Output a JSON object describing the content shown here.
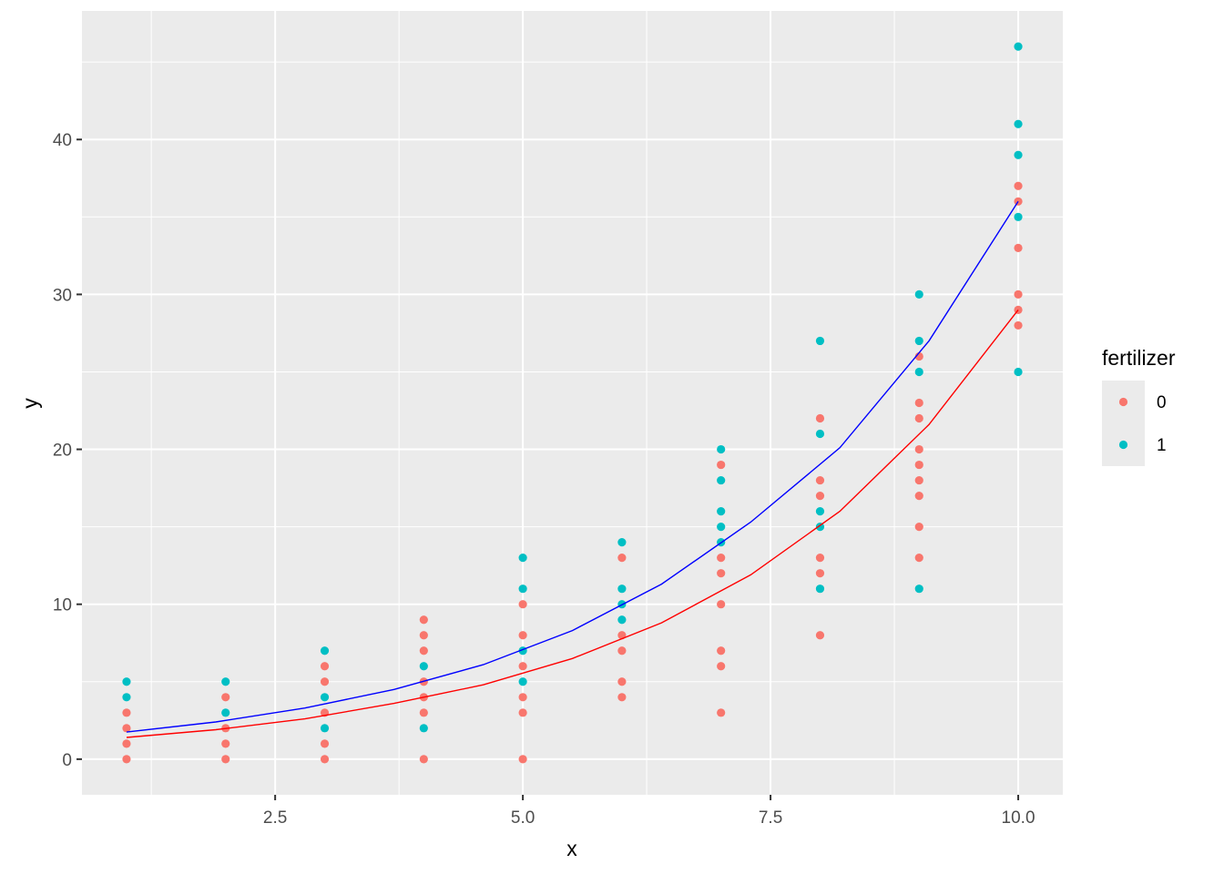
{
  "chart_data": {
    "type": "scatter",
    "xlabel": "x",
    "ylabel": "y",
    "xlim": [
      0.55,
      10.45
    ],
    "ylim": [
      -2.3,
      48.3
    ],
    "x_ticks": [
      2.5,
      5.0,
      7.5,
      10.0
    ],
    "x_tick_labels": [
      "2.5",
      "5.0",
      "7.5",
      "10.0"
    ],
    "y_ticks": [
      0,
      10,
      20,
      30,
      40
    ],
    "y_tick_labels": [
      "0",
      "10",
      "20",
      "30",
      "40"
    ],
    "grid": true,
    "panel_background": "#ebebeb",
    "legend": {
      "title": "fertilizer",
      "position": "right",
      "entries": [
        {
          "label": "0",
          "color": "#F8766D"
        },
        {
          "label": "1",
          "color": "#00BFC4"
        }
      ]
    },
    "series": [
      {
        "name": "0",
        "color": "#F8766D",
        "points": [
          [
            1,
            0
          ],
          [
            1,
            1
          ],
          [
            1,
            2
          ],
          [
            1,
            3
          ],
          [
            2,
            0
          ],
          [
            2,
            1
          ],
          [
            2,
            2
          ],
          [
            2,
            4
          ],
          [
            3,
            0
          ],
          [
            3,
            1
          ],
          [
            3,
            3
          ],
          [
            3,
            5
          ],
          [
            3,
            6
          ],
          [
            4,
            0
          ],
          [
            4,
            3
          ],
          [
            4,
            4
          ],
          [
            4,
            5
          ],
          [
            4,
            7
          ],
          [
            4,
            8
          ],
          [
            4,
            9
          ],
          [
            5,
            0
          ],
          [
            5,
            3
          ],
          [
            5,
            4
          ],
          [
            5,
            6
          ],
          [
            5,
            8
          ],
          [
            5,
            10
          ],
          [
            6,
            4
          ],
          [
            6,
            5
          ],
          [
            6,
            7
          ],
          [
            6,
            8
          ],
          [
            6,
            13
          ],
          [
            7,
            3
          ],
          [
            7,
            6
          ],
          [
            7,
            7
          ],
          [
            7,
            10
          ],
          [
            7,
            12
          ],
          [
            7,
            13
          ],
          [
            7,
            19
          ],
          [
            8,
            8
          ],
          [
            8,
            12
          ],
          [
            8,
            13
          ],
          [
            8,
            17
          ],
          [
            8,
            18
          ],
          [
            8,
            22
          ],
          [
            9,
            13
          ],
          [
            9,
            15
          ],
          [
            9,
            17
          ],
          [
            9,
            18
          ],
          [
            9,
            19
          ],
          [
            9,
            20
          ],
          [
            9,
            22
          ],
          [
            9,
            23
          ],
          [
            9,
            26
          ],
          [
            10,
            28
          ],
          [
            10,
            29
          ],
          [
            10,
            30
          ],
          [
            10,
            33
          ],
          [
            10,
            36
          ],
          [
            10,
            37
          ]
        ]
      },
      {
        "name": "1",
        "color": "#00BFC4",
        "points": [
          [
            1,
            4
          ],
          [
            1,
            5
          ],
          [
            2,
            3
          ],
          [
            2,
            5
          ],
          [
            3,
            2
          ],
          [
            3,
            4
          ],
          [
            3,
            7
          ],
          [
            4,
            2
          ],
          [
            4,
            6
          ],
          [
            5,
            5
          ],
          [
            5,
            7
          ],
          [
            5,
            11
          ],
          [
            5,
            13
          ],
          [
            6,
            9
          ],
          [
            6,
            10
          ],
          [
            6,
            11
          ],
          [
            6,
            14
          ],
          [
            7,
            14
          ],
          [
            7,
            15
          ],
          [
            7,
            16
          ],
          [
            7,
            18
          ],
          [
            7,
            20
          ],
          [
            8,
            11
          ],
          [
            8,
            15
          ],
          [
            8,
            16
          ],
          [
            8,
            21
          ],
          [
            8,
            27
          ],
          [
            9,
            11
          ],
          [
            9,
            25
          ],
          [
            9,
            27
          ],
          [
            9,
            30
          ],
          [
            10,
            25
          ],
          [
            10,
            35
          ],
          [
            10,
            39
          ],
          [
            10,
            41
          ],
          [
            10,
            46
          ]
        ]
      }
    ],
    "fit_lines": [
      {
        "color": "#FF0000",
        "x": [
          1.0,
          1.9,
          2.8,
          3.7,
          4.6,
          5.5,
          6.4,
          7.3,
          8.2,
          9.1,
          10.0
        ],
        "y": [
          1.4,
          1.9,
          2.6,
          3.6,
          4.8,
          6.5,
          8.8,
          11.9,
          16.0,
          21.6,
          29.0
        ]
      },
      {
        "color": "#0000FF",
        "x": [
          1.0,
          1.9,
          2.8,
          3.7,
          4.6,
          5.5,
          6.4,
          7.3,
          8.2,
          9.1,
          10.0
        ],
        "y": [
          1.75,
          2.4,
          3.3,
          4.5,
          6.1,
          8.3,
          11.3,
          15.3,
          20.1,
          27.0,
          36.0
        ]
      }
    ]
  }
}
